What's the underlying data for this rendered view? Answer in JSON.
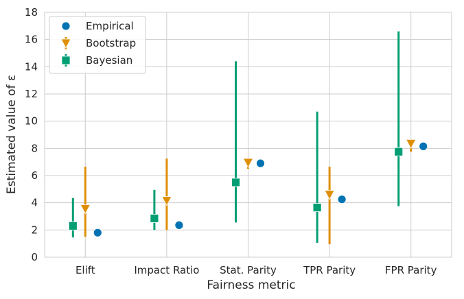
{
  "chart_data": {
    "type": "scatter",
    "title": "",
    "xlabel": "Fairness metric",
    "ylabel": "Estimated value of ε",
    "categories": [
      "Elift",
      "Impact Ratio",
      "Stat. Parity",
      "TPR Parity",
      "FPR Parity"
    ],
    "ylim": [
      0,
      18
    ],
    "yticks": [
      0,
      2,
      4,
      6,
      8,
      10,
      12,
      14,
      16,
      18
    ],
    "grid": true,
    "legend_position": "top-left",
    "series": [
      {
        "name": "Empirical",
        "marker": "circle",
        "color": "#0173b2",
        "values": [
          1.8,
          2.35,
          6.9,
          4.25,
          8.15
        ]
      },
      {
        "name": "Bootstrap",
        "marker": "triangle-down",
        "color": "#de8f05",
        "values": [
          3.55,
          4.15,
          6.95,
          4.6,
          8.35
        ],
        "lower": [
          1.5,
          2.0,
          6.5,
          0.95,
          7.75
        ],
        "upper": [
          6.65,
          7.25,
          7.05,
          6.65,
          8.6
        ]
      },
      {
        "name": "Bayesian",
        "marker": "square",
        "color": "#029e73",
        "values": [
          2.3,
          2.85,
          5.5,
          3.65,
          7.75
        ],
        "lower": [
          1.45,
          2.0,
          2.55,
          1.05,
          3.75
        ],
        "upper": [
          4.35,
          4.95,
          14.4,
          10.7,
          16.6
        ]
      }
    ]
  }
}
